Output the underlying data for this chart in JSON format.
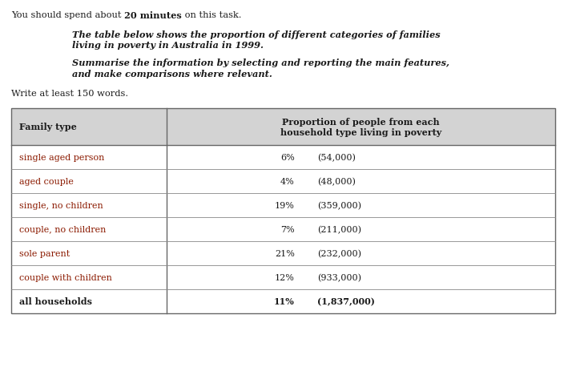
{
  "intro_prefix": "You should spend about ",
  "intro_bold": "20 minutes",
  "intro_suffix": " on this task.",
  "task_line1": "The table below shows the proportion of different categories of families",
  "task_line2": "living in poverty in Australia in 1999.",
  "task_line3": "Summarise the information by selecting and reporting the main features,",
  "task_line4": "and make comparisons where relevant.",
  "write_instruction": "Write at least 150 words.",
  "col1_header": "Family type",
  "col2_header_line1": "Proportion of people from each",
  "col2_header_line2": "household type living in poverty",
  "header_bg": "#d3d3d3",
  "table_border_color": "#666666",
  "row_divider_color": "#888888",
  "rows": [
    {
      "family": "single aged person",
      "pct": "6%",
      "count": "(54,000)",
      "bold": false
    },
    {
      "family": "aged couple",
      "pct": "4%",
      "count": "(48,000)",
      "bold": false
    },
    {
      "family": "single, no children",
      "pct": "19%",
      "count": "(359,000)",
      "bold": false
    },
    {
      "family": "couple, no children",
      "pct": "7%",
      "count": "(211,000)",
      "bold": false
    },
    {
      "family": "sole parent",
      "pct": "21%",
      "count": "(232,000)",
      "bold": false
    },
    {
      "family": "couple with children",
      "pct": "12%",
      "count": "(933,000)",
      "bold": false
    },
    {
      "family": "all households",
      "pct": "11%",
      "count": "(1,837,000)",
      "bold": true
    }
  ],
  "text_color": "#1a1a1a",
  "family_color": "#8b1a00",
  "fig_bg": "#ffffff",
  "fig_w": 7.09,
  "fig_h": 4.64,
  "dpi": 100
}
